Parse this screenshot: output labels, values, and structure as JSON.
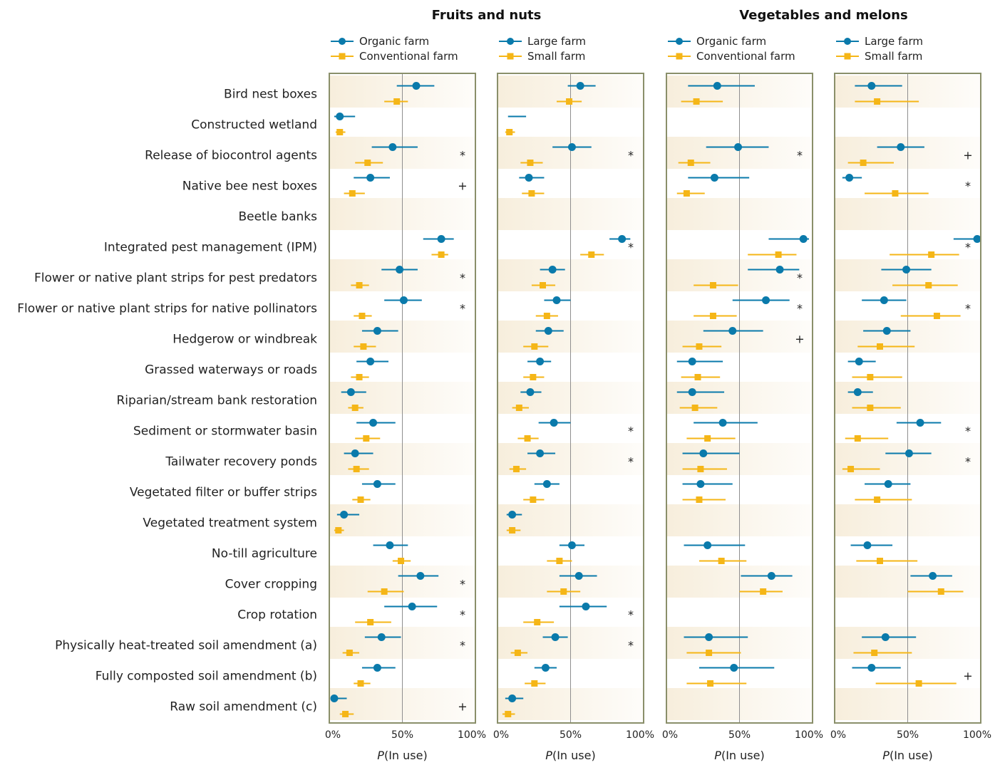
{
  "colors": {
    "series_a": "#0a7aab",
    "series_b": "#f5b617",
    "panel_border": "#8a8f6a",
    "band": "#f7eedc",
    "midline": "#8f8f8f"
  },
  "chart_data": {
    "type": "scatter",
    "categories": [
      "Bird nest boxes",
      "Constructed wetland",
      "Release of biocontrol agents",
      "Native bee nest boxes",
      "Beetle banks",
      "Integrated pest management (IPM)",
      "Flower or native plant strips for pest predators",
      "Flower or native plant strips for native pollinators",
      "Hedgerow or windbreak",
      "Grassed waterways or roads",
      "Riparian/stream bank restoration",
      "Sediment or stormwater basin",
      "Tailwater recovery ponds",
      "Vegetated filter or buffer strips",
      "Vegetated treatment system",
      "No-till agriculture",
      "Cover cropping",
      "Crop rotation",
      "Physically heat-treated soil amendment (a)",
      "Fully composted soil amendment (b)",
      "Raw soil amendment (c)"
    ],
    "group_titles": [
      "Fruits and nuts",
      "Vegetables and melons"
    ],
    "x_ticks": [
      "0%",
      "50%",
      "100%"
    ],
    "xlabel_italic": "P",
    "xlabel_rest": "(In use)",
    "xlim": [
      0,
      1
    ],
    "panels": [
      {
        "group": 0,
        "series": [
          {
            "name": "Organic farm",
            "marker": "circle",
            "points": [
              [
                0.6,
                0.46,
                0.73
              ],
              [
                0.05,
                0.01,
                0.16
              ],
              [
                0.43,
                0.28,
                0.61
              ],
              [
                0.27,
                0.15,
                0.41
              ],
              null,
              [
                0.78,
                0.65,
                0.87
              ],
              [
                0.48,
                0.35,
                0.61
              ],
              [
                0.51,
                0.37,
                0.64
              ],
              [
                0.32,
                0.21,
                0.47
              ],
              [
                0.27,
                0.17,
                0.4
              ],
              [
                0.13,
                0.06,
                0.24
              ],
              [
                0.29,
                0.17,
                0.45
              ],
              [
                0.16,
                0.08,
                0.29
              ],
              [
                0.32,
                0.21,
                0.45
              ],
              [
                0.08,
                0.03,
                0.19
              ],
              [
                0.41,
                0.29,
                0.54
              ],
              [
                0.63,
                0.47,
                0.76
              ],
              [
                0.57,
                0.37,
                0.75
              ],
              [
                0.35,
                0.23,
                0.49
              ],
              [
                0.32,
                0.21,
                0.45
              ],
              [
                0.01,
                0.0,
                0.1
              ]
            ]
          },
          {
            "name": "Conventional farm",
            "marker": "square",
            "points": [
              [
                0.46,
                0.37,
                0.54
              ],
              [
                0.05,
                0.02,
                0.09
              ],
              [
                0.25,
                0.16,
                0.36
              ],
              [
                0.14,
                0.08,
                0.23
              ],
              null,
              [
                0.78,
                0.71,
                0.83
              ],
              [
                0.19,
                0.13,
                0.26
              ],
              [
                0.21,
                0.15,
                0.28
              ],
              [
                0.22,
                0.15,
                0.31
              ],
              [
                0.19,
                0.13,
                0.26
              ],
              [
                0.16,
                0.11,
                0.22
              ],
              [
                0.24,
                0.16,
                0.34
              ],
              [
                0.17,
                0.11,
                0.26
              ],
              [
                0.2,
                0.14,
                0.27
              ],
              [
                0.04,
                0.01,
                0.08
              ],
              [
                0.49,
                0.43,
                0.56
              ],
              [
                0.37,
                0.25,
                0.51
              ],
              [
                0.27,
                0.16,
                0.42
              ],
              [
                0.12,
                0.07,
                0.19
              ],
              [
                0.2,
                0.15,
                0.27
              ],
              [
                0.09,
                0.05,
                0.15
              ]
            ]
          }
        ],
        "legend": [
          "Organic farm",
          "Conventional farm"
        ],
        "sig": [
          "",
          "",
          "*",
          "+",
          "",
          "",
          "*",
          "*",
          "",
          "",
          "",
          "",
          "",
          "",
          "",
          "",
          "*",
          "*",
          "*",
          "",
          "+"
        ]
      },
      {
        "group": 0,
        "series": [
          {
            "name": "Large farm",
            "marker": "circle",
            "points": [
              [
                0.57,
                0.48,
                0.68
              ],
              [
                null,
                0.05,
                0.18
              ],
              [
                0.51,
                0.37,
                0.65
              ],
              [
                0.2,
                0.13,
                0.31
              ],
              null,
              [
                0.87,
                0.78,
                0.93
              ],
              [
                0.37,
                0.28,
                0.46
              ],
              [
                0.4,
                0.31,
                0.5
              ],
              [
                0.34,
                0.25,
                0.45
              ],
              [
                0.28,
                0.19,
                0.36
              ],
              [
                0.21,
                0.14,
                0.29
              ],
              [
                0.38,
                0.27,
                0.5
              ],
              [
                0.28,
                0.19,
                0.39
              ],
              [
                0.33,
                0.24,
                0.42
              ],
              [
                0.08,
                0.04,
                0.15
              ],
              [
                0.51,
                0.42,
                0.6
              ],
              [
                0.56,
                0.42,
                0.69
              ],
              [
                0.61,
                0.42,
                0.76
              ],
              [
                0.39,
                0.3,
                0.48
              ],
              [
                0.32,
                0.24,
                0.4
              ],
              [
                0.08,
                0.03,
                0.16
              ]
            ]
          },
          {
            "name": "Small farm",
            "marker": "square",
            "points": [
              [
                0.49,
                0.4,
                0.58
              ],
              [
                0.06,
                0.03,
                0.1
              ],
              [
                0.21,
                0.14,
                0.3
              ],
              [
                0.22,
                0.15,
                0.31
              ],
              null,
              [
                0.65,
                0.57,
                0.74
              ],
              [
                0.3,
                0.22,
                0.39
              ],
              [
                0.33,
                0.25,
                0.41
              ],
              [
                0.24,
                0.16,
                0.34
              ],
              [
                0.23,
                0.16,
                0.31
              ],
              [
                0.13,
                0.08,
                0.2
              ],
              [
                0.19,
                0.12,
                0.27
              ],
              [
                0.11,
                0.06,
                0.18
              ],
              [
                0.23,
                0.16,
                0.31
              ],
              [
                0.08,
                0.04,
                0.14
              ],
              [
                0.42,
                0.33,
                0.51
              ],
              [
                0.45,
                0.33,
                0.57
              ],
              [
                0.26,
                0.16,
                0.38
              ],
              [
                0.12,
                0.07,
                0.19
              ],
              [
                0.24,
                0.17,
                0.32
              ],
              [
                0.05,
                0.01,
                0.1
              ]
            ]
          }
        ],
        "legend": [
          "Large farm",
          "Small farm"
        ],
        "sig": [
          "",
          "",
          "*",
          "",
          "",
          "*",
          "",
          "",
          "",
          "",
          "",
          "*",
          "*",
          "",
          "",
          "",
          "",
          "*",
          "*",
          "",
          ""
        ]
      },
      {
        "group": 1,
        "series": [
          {
            "name": "Organic farm",
            "marker": "circle",
            "points": [
              [
                0.34,
                0.13,
                0.61
              ],
              null,
              [
                0.49,
                0.26,
                0.71
              ],
              [
                0.32,
                0.13,
                0.57
              ],
              null,
              [
                0.96,
                0.71,
                1.0
              ],
              [
                0.79,
                0.56,
                0.93
              ],
              [
                0.69,
                0.45,
                0.86
              ],
              [
                0.45,
                0.24,
                0.67
              ],
              [
                0.16,
                0.05,
                0.38
              ],
              [
                0.16,
                0.05,
                0.39
              ],
              [
                0.38,
                0.17,
                0.63
              ],
              [
                0.24,
                0.09,
                0.5
              ],
              [
                0.22,
                0.09,
                0.45
              ],
              null,
              [
                0.27,
                0.1,
                0.54
              ],
              [
                0.73,
                0.51,
                0.88
              ],
              null,
              [
                0.28,
                0.1,
                0.56
              ],
              [
                0.46,
                0.21,
                0.75
              ],
              null
            ]
          },
          {
            "name": "Conventional farm",
            "marker": "square",
            "points": [
              [
                0.19,
                0.08,
                0.38
              ],
              null,
              [
                0.15,
                0.06,
                0.29
              ],
              [
                0.12,
                0.05,
                0.25
              ],
              null,
              [
                0.78,
                0.56,
                0.91
              ],
              [
                0.31,
                0.17,
                0.49
              ],
              [
                0.31,
                0.17,
                0.48
              ],
              [
                0.21,
                0.09,
                0.37
              ],
              [
                0.2,
                0.08,
                0.36
              ],
              [
                0.18,
                0.07,
                0.34
              ],
              [
                0.27,
                0.12,
                0.47
              ],
              [
                0.22,
                0.09,
                0.41
              ],
              [
                0.21,
                0.09,
                0.4
              ],
              null,
              [
                0.37,
                0.21,
                0.55
              ],
              [
                0.67,
                0.5,
                0.81
              ],
              null,
              [
                0.28,
                0.12,
                0.51
              ],
              [
                0.29,
                0.12,
                0.55
              ],
              null
            ]
          }
        ],
        "legend": [
          "Organic farm",
          "Conventional farm"
        ],
        "sig": [
          "",
          "",
          "*",
          "",
          "",
          "",
          "*",
          "*",
          "+",
          "",
          "",
          "",
          "",
          "",
          "",
          "",
          "",
          "",
          "",
          "",
          ""
        ]
      },
      {
        "group": 1,
        "series": [
          {
            "name": "Large farm",
            "marker": "circle",
            "points": [
              [
                0.24,
                0.12,
                0.46
              ],
              null,
              [
                0.45,
                0.28,
                0.62
              ],
              [
                0.08,
                0.03,
                0.17
              ],
              null,
              [
                1.0,
                0.83,
                1.0
              ],
              [
                0.49,
                0.31,
                0.67
              ],
              [
                0.33,
                0.17,
                0.49
              ],
              [
                0.35,
                0.18,
                0.52
              ],
              [
                0.15,
                0.07,
                0.27
              ],
              [
                0.14,
                0.07,
                0.25
              ],
              [
                0.59,
                0.42,
                0.74
              ],
              [
                0.51,
                0.34,
                0.67
              ],
              [
                0.36,
                0.19,
                0.52
              ],
              null,
              [
                0.21,
                0.09,
                0.39
              ],
              [
                0.68,
                0.52,
                0.82
              ],
              null,
              [
                0.34,
                0.17,
                0.56
              ],
              [
                0.24,
                0.1,
                0.45
              ],
              null
            ]
          },
          {
            "name": "Small farm",
            "marker": "square",
            "points": [
              [
                0.28,
                0.12,
                0.58
              ],
              null,
              [
                0.18,
                0.07,
                0.4
              ],
              [
                0.41,
                0.19,
                0.65
              ],
              null,
              [
                0.67,
                0.37,
                0.87
              ],
              [
                0.65,
                0.39,
                0.86
              ],
              [
                0.71,
                0.45,
                0.88
              ],
              [
                0.3,
                0.14,
                0.55
              ],
              [
                0.23,
                0.1,
                0.46
              ],
              [
                0.23,
                0.1,
                0.45
              ],
              [
                0.14,
                0.05,
                0.36
              ],
              [
                0.09,
                0.03,
                0.3
              ],
              [
                0.28,
                0.12,
                0.53
              ],
              null,
              [
                0.3,
                0.13,
                0.57
              ],
              [
                0.74,
                0.5,
                0.9
              ],
              null,
              [
                0.26,
                0.11,
                0.53
              ],
              [
                0.58,
                0.27,
                0.85
              ],
              null
            ]
          }
        ],
        "legend": [
          "Large farm",
          "Small farm"
        ],
        "sig": [
          "",
          "",
          "+",
          "*",
          "",
          "*",
          "",
          "*",
          "",
          "",
          "",
          "*",
          "*",
          "",
          "",
          "",
          "",
          "",
          "",
          "+",
          ""
        ]
      }
    ]
  }
}
